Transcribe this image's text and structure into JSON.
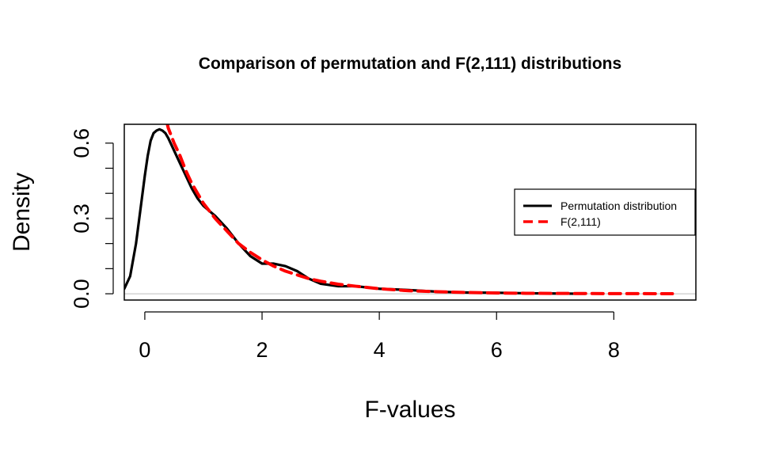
{
  "chart_data": {
    "type": "line",
    "title": "Comparison of permutation and F(2,111) distributions",
    "xlabel": "F-values",
    "ylabel": "Density",
    "xlim": [
      -0.35,
      9.4
    ],
    "ylim": [
      -0.025,
      0.675
    ],
    "x_ticks": [
      0,
      2,
      4,
      6,
      8
    ],
    "y_ticks": [
      0.0,
      0.3,
      0.6
    ],
    "x_tick_labels": [
      "0",
      "2",
      "4",
      "6",
      "8"
    ],
    "y_tick_labels": [
      "0.0",
      "0.3",
      "0.6"
    ],
    "y_minor_ticks": [
      0.1,
      0.2,
      0.4,
      0.5
    ],
    "grid": false,
    "reference_line_y": 0,
    "legend_position": "right",
    "series": [
      {
        "name": "Permutation distribution",
        "color": "#000000",
        "style": "solid",
        "x": [
          -0.35,
          -0.25,
          -0.15,
          -0.05,
          0.0,
          0.05,
          0.1,
          0.15,
          0.2,
          0.25,
          0.3,
          0.35,
          0.4,
          0.5,
          0.6,
          0.7,
          0.8,
          0.9,
          1.0,
          1.2,
          1.4,
          1.6,
          1.8,
          2.0,
          2.2,
          2.4,
          2.6,
          2.8,
          3.0,
          3.3,
          3.6,
          4.0,
          4.5,
          5.0,
          5.5,
          6.0,
          6.5,
          7.0,
          7.5
        ],
        "y": [
          0.02,
          0.07,
          0.2,
          0.38,
          0.47,
          0.55,
          0.61,
          0.64,
          0.65,
          0.655,
          0.65,
          0.64,
          0.62,
          0.57,
          0.52,
          0.47,
          0.42,
          0.38,
          0.35,
          0.31,
          0.26,
          0.2,
          0.15,
          0.12,
          0.12,
          0.11,
          0.09,
          0.06,
          0.04,
          0.03,
          0.03,
          0.02,
          0.015,
          0.008,
          0.005,
          0.004,
          0.002,
          0.001,
          0.0
        ]
      },
      {
        "name": "F(2,111)",
        "color": "#ff0000",
        "style": "dashed",
        "x": [
          0.38,
          0.4,
          0.5,
          0.6,
          0.7,
          0.8,
          0.9,
          1.0,
          1.2,
          1.4,
          1.6,
          1.8,
          2.0,
          2.2,
          2.4,
          2.6,
          2.8,
          3.0,
          3.3,
          3.6,
          4.0,
          4.5,
          5.0,
          5.5,
          6.0,
          6.5,
          7.0,
          7.5,
          8.0,
          8.5,
          9.0
        ],
        "y": [
          0.68,
          0.66,
          0.6,
          0.55,
          0.49,
          0.44,
          0.4,
          0.36,
          0.3,
          0.25,
          0.2,
          0.165,
          0.135,
          0.11,
          0.09,
          0.075,
          0.06,
          0.05,
          0.038,
          0.03,
          0.02,
          0.012,
          0.008,
          0.005,
          0.003,
          0.002,
          0.0015,
          0.001,
          0.0007,
          0.0005,
          0.0003
        ]
      }
    ]
  }
}
